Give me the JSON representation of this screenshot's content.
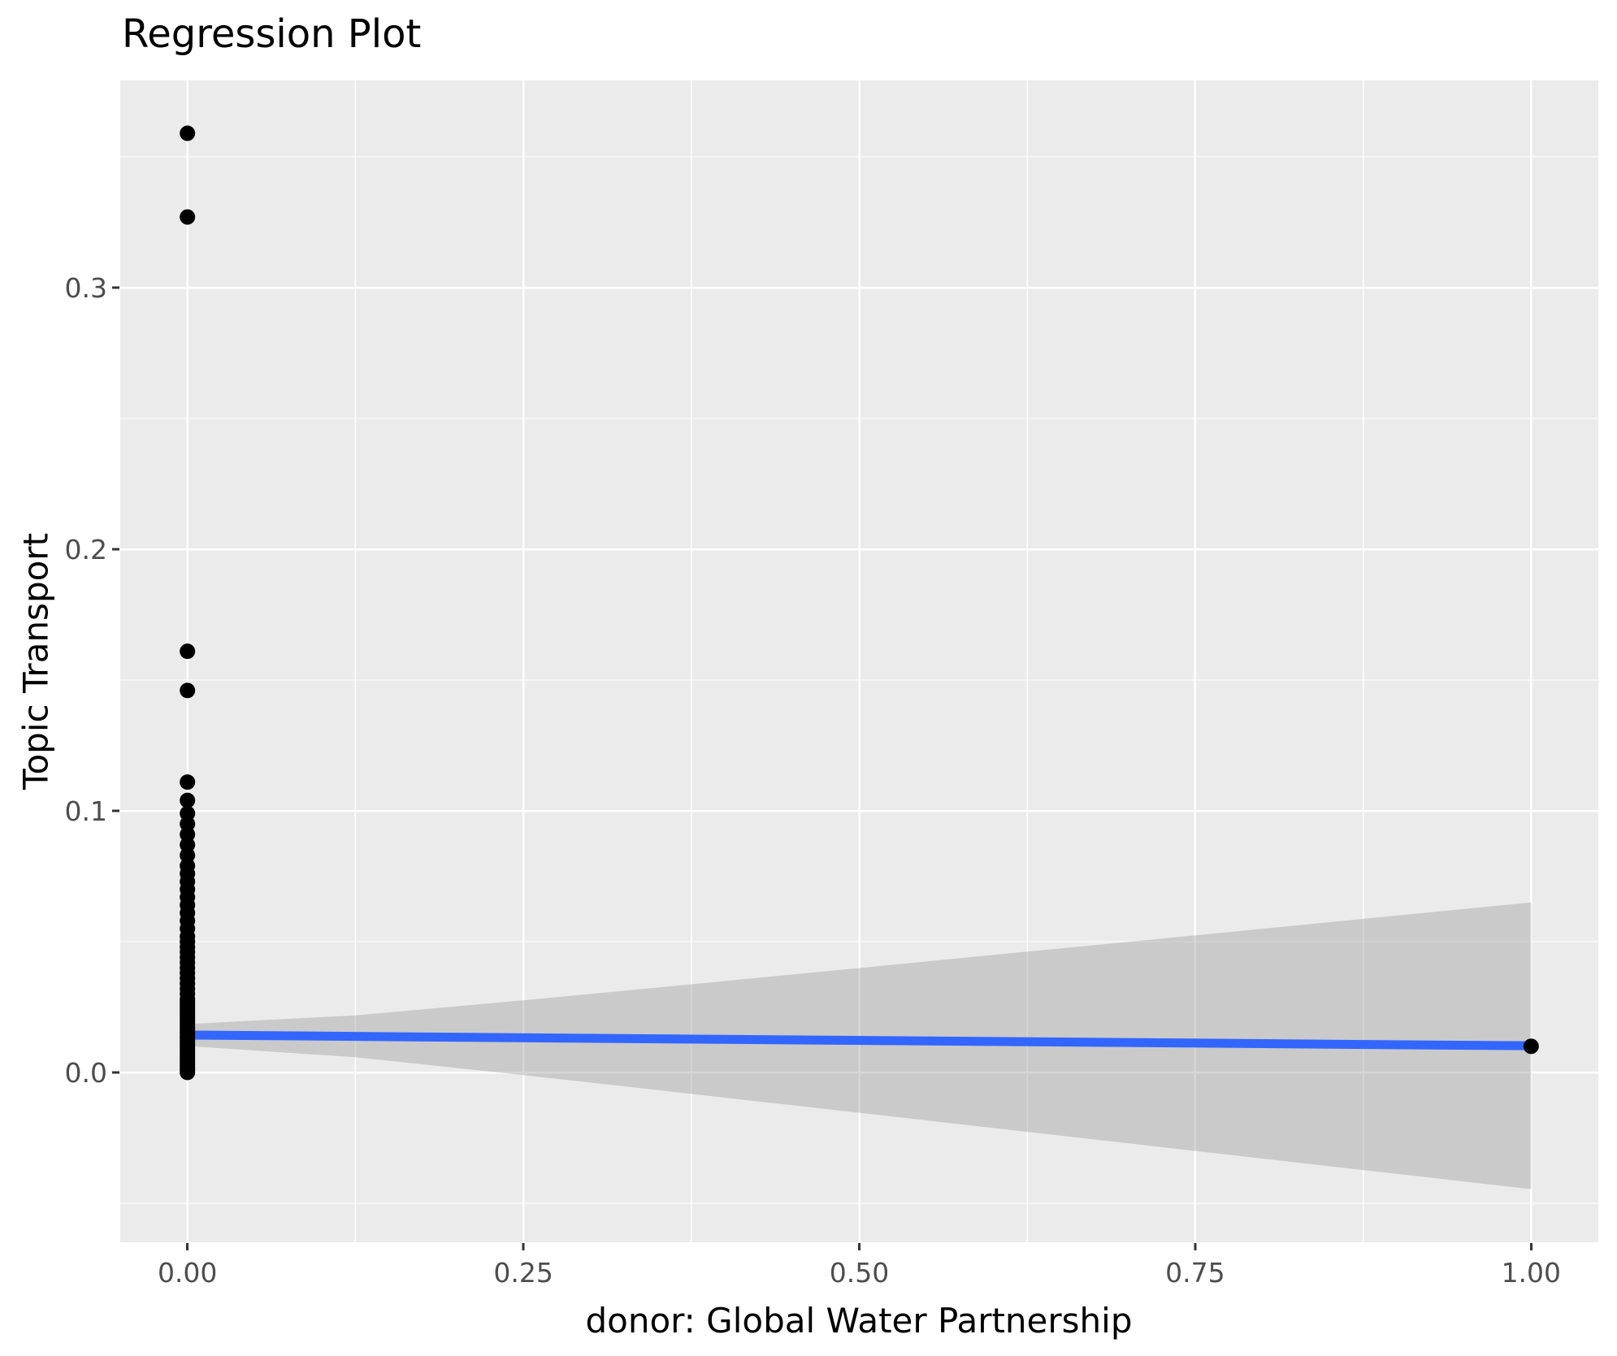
{
  "chart_data": {
    "type": "scatter",
    "title": "Regression Plot",
    "xlabel": "donor: Global Water Partnership",
    "ylabel": "Topic Transport",
    "legend": "none",
    "grid": "on",
    "x_axis": {
      "range": [
        -0.05,
        1.05
      ],
      "ticks": [
        0.0,
        0.25,
        0.5,
        0.75,
        1.0
      ],
      "tick_labels": [
        "0.00",
        "0.25",
        "0.50",
        "0.75",
        "1.00"
      ],
      "minor_ticks": [
        0.125,
        0.375,
        0.625,
        0.875
      ]
    },
    "y_axis": {
      "range": [
        -0.0649,
        0.3792
      ],
      "ticks": [
        0.0,
        0.1,
        0.2,
        0.3
      ],
      "tick_labels": [
        "0.0",
        "0.1",
        "0.2",
        "0.3"
      ],
      "minor_ticks": [
        -0.05,
        0.05,
        0.15,
        0.25,
        0.35
      ]
    },
    "points": [
      [
        0,
        0.359
      ],
      [
        0,
        0.327
      ],
      [
        0,
        0.161
      ],
      [
        0,
        0.146
      ],
      [
        0,
        0.111
      ],
      [
        0,
        0.104
      ],
      [
        0,
        0.099
      ],
      [
        0,
        0.095
      ],
      [
        0,
        0.091
      ],
      [
        0,
        0.087
      ],
      [
        0,
        0.083
      ],
      [
        0,
        0.079
      ],
      [
        0,
        0.076
      ],
      [
        0,
        0.073
      ],
      [
        0,
        0.07
      ],
      [
        0,
        0.067
      ],
      [
        0,
        0.064
      ],
      [
        0,
        0.061
      ],
      [
        0,
        0.058
      ],
      [
        0,
        0.055
      ],
      [
        0,
        0.052
      ],
      [
        0,
        0.05
      ],
      [
        0,
        0.048
      ],
      [
        0,
        0.046
      ],
      [
        0,
        0.044
      ],
      [
        0,
        0.042
      ],
      [
        0,
        0.04
      ],
      [
        0,
        0.038
      ],
      [
        0,
        0.036
      ],
      [
        0,
        0.034
      ],
      [
        0,
        0.032
      ],
      [
        0,
        0.03
      ],
      [
        0,
        0.028
      ],
      [
        0,
        0.027
      ],
      [
        0,
        0.026
      ],
      [
        0,
        0.025
      ],
      [
        0,
        0.024
      ],
      [
        0,
        0.023
      ],
      [
        0,
        0.022
      ],
      [
        0,
        0.021
      ],
      [
        0,
        0.02
      ],
      [
        0,
        0.019
      ],
      [
        0,
        0.018
      ],
      [
        0,
        0.017
      ],
      [
        0,
        0.016
      ],
      [
        0,
        0.015
      ],
      [
        0,
        0.014
      ],
      [
        0,
        0.013
      ],
      [
        0,
        0.012
      ],
      [
        0,
        0.011
      ],
      [
        0,
        0.01
      ],
      [
        0,
        0.009
      ],
      [
        0,
        0.008
      ],
      [
        0,
        0.007
      ],
      [
        0,
        0.006
      ],
      [
        0,
        0.005
      ],
      [
        0,
        0.004
      ],
      [
        0,
        0.003
      ],
      [
        0,
        0.002
      ],
      [
        0,
        0.001
      ],
      [
        0,
        0.0
      ],
      [
        1,
        0.01
      ]
    ],
    "regression_line": {
      "x": [
        0,
        1
      ],
      "y": [
        0.0143,
        0.0102
      ]
    },
    "confidence_band": {
      "x": [
        0,
        0.125,
        0.25,
        0.375,
        0.5,
        0.625,
        0.75,
        0.875,
        1
      ],
      "upper": [
        0.0185,
        0.0218,
        0.0276,
        0.0337,
        0.0399,
        0.0462,
        0.0524,
        0.0587,
        0.065
      ],
      "lower": [
        0.0101,
        0.0058,
        -0.001,
        -0.0082,
        -0.0154,
        -0.0227,
        -0.03,
        -0.0373,
        -0.0446
      ]
    },
    "colors": {
      "panel_background": "#EBEBEB",
      "gridline": "#FFFFFF",
      "point": "#000000",
      "line": "#3366FF",
      "band": "rgba(153,153,153,0.4)",
      "tick_mark": "#333333",
      "tick_label": "#4D4D4D",
      "title": "#000000",
      "axis_title": "#000000"
    },
    "style": {
      "point_radius": 9.5,
      "line_width": 11,
      "major_grid_width": 2.5,
      "minor_grid_width": 1.3,
      "tick_length": 9,
      "title_font_size": 48,
      "axis_title_font_size": 42,
      "tick_label_font_size": 33
    }
  }
}
